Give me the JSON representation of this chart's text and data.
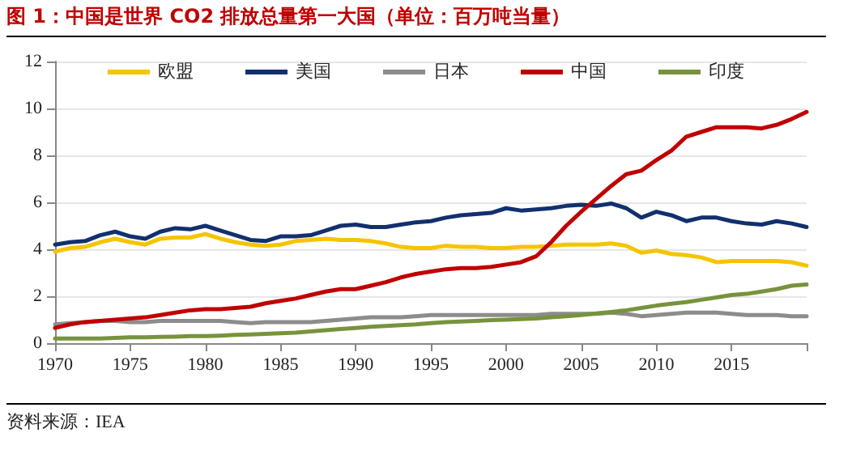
{
  "chart_data": {
    "type": "line",
    "title": "图 1：中国是世界 CO2 排放总量第一大国（单位：百万吨当量）",
    "annotations": [
      "资料来源：IEA"
    ],
    "x": [
      1970,
      1971,
      1972,
      1973,
      1974,
      1975,
      1976,
      1977,
      1978,
      1979,
      1980,
      1981,
      1982,
      1983,
      1984,
      1985,
      1986,
      1987,
      1988,
      1989,
      1990,
      1991,
      1992,
      1993,
      1994,
      1995,
      1996,
      1997,
      1998,
      1999,
      2000,
      2001,
      2002,
      2003,
      2004,
      2005,
      2006,
      2007,
      2008,
      2009,
      2010,
      2011,
      2012,
      2013,
      2014,
      2015,
      2016,
      2017,
      2018,
      2019,
      2020
    ],
    "series": [
      {
        "name": "欧盟",
        "color": "#f5c400",
        "values": [
          3.9,
          4.05,
          4.1,
          4.3,
          4.45,
          4.3,
          4.2,
          4.45,
          4.5,
          4.5,
          4.65,
          4.45,
          4.3,
          4.2,
          4.15,
          4.2,
          4.35,
          4.4,
          4.45,
          4.4,
          4.4,
          4.35,
          4.25,
          4.1,
          4.05,
          4.05,
          4.15,
          4.1,
          4.1,
          4.05,
          4.05,
          4.1,
          4.1,
          4.15,
          4.2,
          4.2,
          4.2,
          4.25,
          4.15,
          3.85,
          3.95,
          3.8,
          3.75,
          3.65,
          3.45,
          3.5,
          3.5,
          3.5,
          3.5,
          3.45,
          3.3
        ]
      },
      {
        "name": "美国",
        "color": "#12306e",
        "values": [
          4.2,
          4.3,
          4.35,
          4.6,
          4.75,
          4.55,
          4.45,
          4.75,
          4.9,
          4.85,
          5.0,
          4.8,
          4.6,
          4.4,
          4.35,
          4.55,
          4.55,
          4.6,
          4.8,
          5.0,
          5.05,
          4.95,
          4.95,
          5.05,
          5.15,
          5.2,
          5.35,
          5.45,
          5.5,
          5.55,
          5.75,
          5.65,
          5.7,
          5.75,
          5.85,
          5.9,
          5.85,
          5.95,
          5.75,
          5.35,
          5.6,
          5.45,
          5.2,
          5.35,
          5.35,
          5.2,
          5.1,
          5.05,
          5.2,
          5.1,
          4.95
        ]
      },
      {
        "name": "日本",
        "color": "#8c8c8c",
        "values": [
          0.8,
          0.85,
          0.9,
          0.95,
          0.95,
          0.9,
          0.9,
          0.95,
          0.95,
          0.95,
          0.95,
          0.95,
          0.9,
          0.85,
          0.9,
          0.9,
          0.9,
          0.9,
          0.95,
          1.0,
          1.05,
          1.1,
          1.1,
          1.1,
          1.15,
          1.2,
          1.2,
          1.2,
          1.2,
          1.2,
          1.2,
          1.2,
          1.2,
          1.25,
          1.25,
          1.25,
          1.25,
          1.3,
          1.25,
          1.15,
          1.2,
          1.25,
          1.3,
          1.3,
          1.3,
          1.25,
          1.2,
          1.2,
          1.2,
          1.15,
          1.15
        ]
      },
      {
        "name": "中国",
        "color": "#c00000",
        "values": [
          0.65,
          0.8,
          0.9,
          0.95,
          1.0,
          1.05,
          1.1,
          1.2,
          1.3,
          1.4,
          1.45,
          1.45,
          1.5,
          1.55,
          1.7,
          1.8,
          1.9,
          2.05,
          2.2,
          2.3,
          2.3,
          2.45,
          2.6,
          2.8,
          2.95,
          3.05,
          3.15,
          3.2,
          3.2,
          3.25,
          3.35,
          3.45,
          3.7,
          4.3,
          5.0,
          5.6,
          6.15,
          6.7,
          7.2,
          7.35,
          7.8,
          8.2,
          8.8,
          9.0,
          9.2,
          9.2,
          9.2,
          9.15,
          9.3,
          9.55,
          9.85
        ]
      },
      {
        "name": "印度",
        "color": "#77933c",
        "values": [
          0.2,
          0.2,
          0.2,
          0.2,
          0.22,
          0.25,
          0.25,
          0.27,
          0.28,
          0.3,
          0.3,
          0.32,
          0.35,
          0.37,
          0.4,
          0.42,
          0.45,
          0.5,
          0.55,
          0.6,
          0.65,
          0.7,
          0.73,
          0.77,
          0.8,
          0.85,
          0.9,
          0.92,
          0.95,
          0.98,
          1.0,
          1.03,
          1.05,
          1.1,
          1.15,
          1.2,
          1.27,
          1.33,
          1.4,
          1.5,
          1.6,
          1.68,
          1.75,
          1.85,
          1.95,
          2.05,
          2.1,
          2.2,
          2.3,
          2.45,
          2.5
        ]
      }
    ],
    "xlim": [
      1970,
      2020
    ],
    "xticks": [
      1970,
      1975,
      1980,
      1985,
      1990,
      1995,
      2000,
      2005,
      2010,
      2015,
      {
        "value": 2020,
        "label": null
      }
    ],
    "ylim": [
      0,
      12
    ],
    "yticks": [
      0,
      2,
      4,
      6,
      8,
      10,
      12
    ],
    "grid": "y",
    "legend": "top",
    "marker": "none",
    "line_style": "solid"
  }
}
